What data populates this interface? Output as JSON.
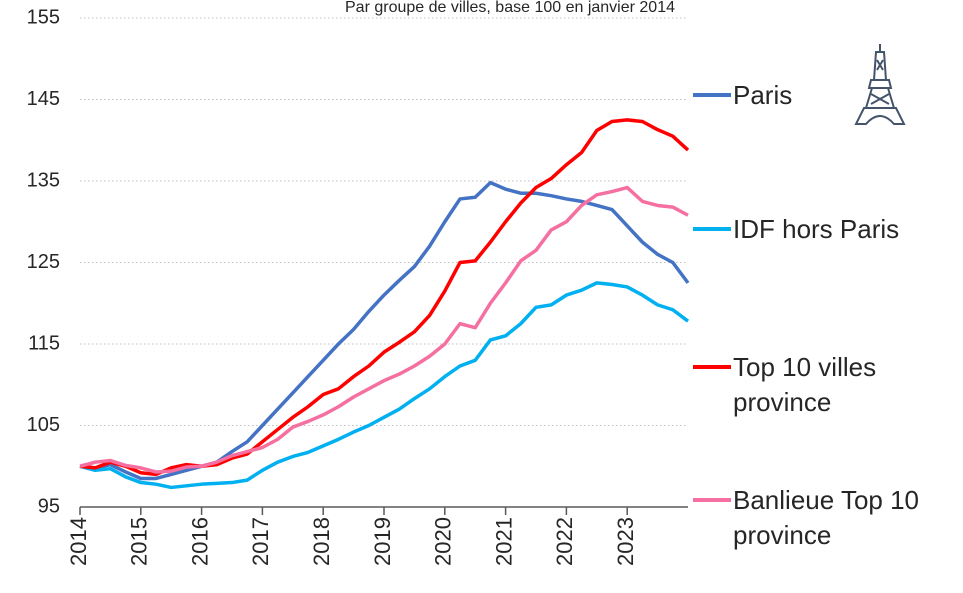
{
  "chart_data": {
    "type": "line",
    "subtitle": "Par groupe de villes, base 100 en janvier 2014",
    "x": [
      2014,
      2014.25,
      2014.5,
      2014.75,
      2015,
      2015.25,
      2015.5,
      2015.75,
      2016,
      2016.25,
      2016.5,
      2016.75,
      2017,
      2017.25,
      2017.5,
      2017.75,
      2018,
      2018.25,
      2018.5,
      2018.75,
      2019,
      2019.25,
      2019.5,
      2019.75,
      2020,
      2020.25,
      2020.5,
      2020.75,
      2021,
      2021.25,
      2021.5,
      2021.75,
      2022,
      2022.25,
      2022.5,
      2022.75,
      2023,
      2023.25,
      2023.5,
      2023.75,
      2024
    ],
    "series": [
      {
        "name": "Paris",
        "color": "#4472C4",
        "values": [
          100,
          99.8,
          100.2,
          99.3,
          98.5,
          98.5,
          99,
          99.5,
          100,
          100.5,
          101.8,
          103,
          105,
          107,
          109,
          111,
          113,
          115,
          116.8,
          119,
          121,
          122.8,
          124.5,
          127,
          130,
          132.8,
          133,
          134.8,
          134,
          133.5,
          133.5,
          133.2,
          132.8,
          132.5,
          132,
          131.5,
          129.5,
          127.5,
          126,
          125,
          122.5
        ]
      },
      {
        "name": "IDF hors Paris",
        "color": "#00B0F0",
        "values": [
          100,
          99.5,
          99.7,
          98.7,
          98,
          97.8,
          97.4,
          97.6,
          97.8,
          97.9,
          98,
          98.3,
          99.5,
          100.5,
          101.2,
          101.7,
          102.5,
          103.3,
          104.2,
          105,
          106,
          107,
          108.3,
          109.5,
          111,
          112.3,
          113,
          115.5,
          116,
          117.5,
          119.5,
          119.8,
          121,
          121.6,
          122.5,
          122.3,
          122,
          121,
          119.8,
          119.2,
          117.8
        ]
      },
      {
        "name": "Top 10 villes province",
        "color": "#FF0000",
        "values": [
          100,
          99.8,
          100.5,
          100,
          99.2,
          99,
          99.8,
          100.2,
          100,
          100.2,
          101,
          101.5,
          103,
          104.5,
          106,
          107.3,
          108.8,
          109.5,
          111,
          112.3,
          114,
          115.2,
          116.5,
          118.5,
          121.5,
          125,
          125.2,
          127.5,
          130,
          132.3,
          134.2,
          135.3,
          137,
          138.5,
          141.2,
          142.3,
          142.5,
          142.3,
          141.3,
          140.5,
          138.8
        ]
      },
      {
        "name": "Banlieue Top 10 province",
        "color": "#F56FA1",
        "values": [
          100,
          100.5,
          100.7,
          100.1,
          99.8,
          99.3,
          99.4,
          99.9,
          100,
          100.5,
          101.3,
          101.8,
          102.3,
          103.3,
          104.8,
          105.5,
          106.3,
          107.3,
          108.5,
          109.5,
          110.5,
          111.3,
          112.3,
          113.5,
          115,
          117.5,
          117,
          120,
          122.5,
          125.2,
          126.5,
          129,
          130,
          132,
          133.3,
          133.7,
          134.2,
          132.5,
          132,
          131.8,
          130.8
        ]
      }
    ],
    "xlim": [
      2014,
      2024
    ],
    "xticks": [
      2014,
      2015,
      2016,
      2017,
      2018,
      2019,
      2020,
      2021,
      2022,
      2023
    ],
    "ylim": [
      95,
      155
    ],
    "yticks": [
      95,
      105,
      115,
      125,
      135,
      145,
      155
    ],
    "grid": true
  }
}
